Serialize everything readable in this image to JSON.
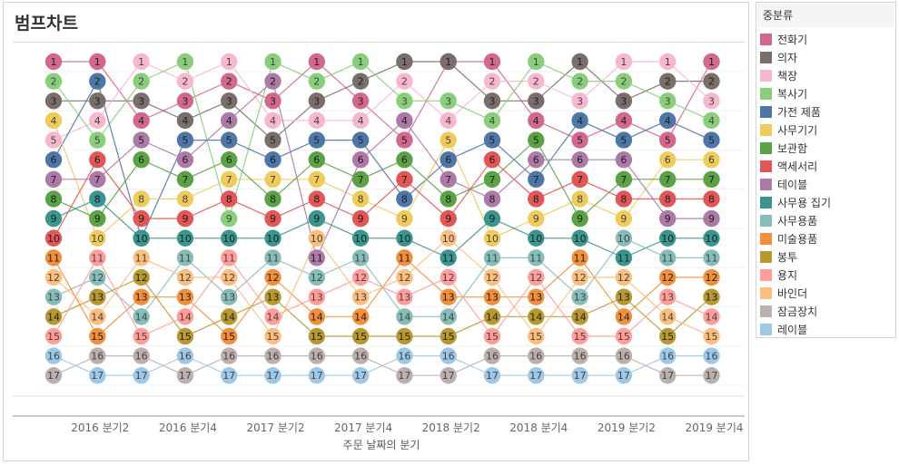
{
  "title": "범프차트",
  "legend": {
    "title": "중분류",
    "items": [
      {
        "label": "전화기",
        "color": "#D2688E"
      },
      {
        "label": "의자",
        "color": "#7A6E6B"
      },
      {
        "label": "책장",
        "color": "#F7B8CF"
      },
      {
        "label": "복사기",
        "color": "#8ACE7C"
      },
      {
        "label": "가전 제품",
        "color": "#4E76A6"
      },
      {
        "label": "사무기기",
        "color": "#EFCB5C"
      },
      {
        "label": "보관함",
        "color": "#5BA246"
      },
      {
        "label": "액세서리",
        "color": "#E15657"
      },
      {
        "label": "테이블",
        "color": "#AD79A7"
      },
      {
        "label": "사무용 집기",
        "color": "#3A958E"
      },
      {
        "label": "사무용품",
        "color": "#87BDB8"
      },
      {
        "label": "미술용품",
        "color": "#F18F3A"
      },
      {
        "label": "봉투",
        "color": "#B8992F"
      },
      {
        "label": "용지",
        "color": "#FF9D9A"
      },
      {
        "label": "바인더",
        "color": "#FBBE7E"
      },
      {
        "label": "잠금장치",
        "color": "#BBB0AB"
      },
      {
        "label": "레이블",
        "color": "#9DC8E8"
      }
    ]
  },
  "chart_data": {
    "type": "line",
    "title": "범프차트",
    "xlabel": "주문 날짜의 분기",
    "x_tick_labels": [
      "2016 분기2",
      "2016 분기4",
      "2017 분기2",
      "2017 분기4",
      "2018 분기2",
      "2018 분기4",
      "2019 분기2",
      "2019 분기4"
    ],
    "x": [
      "2016 분기1",
      "2016 분기2",
      "2016 분기3",
      "2016 분기4",
      "2017 분기1",
      "2017 분기2",
      "2017 분기3",
      "2017 분기4",
      "2018 분기1",
      "2018 분기2",
      "2018 분기3",
      "2018 분기4",
      "2019 분기1",
      "2019 분기2",
      "2019 분기3",
      "2019 분기4"
    ],
    "ylim": [
      1,
      17
    ],
    "y_reversed": true,
    "series": [
      {
        "name": "전화기",
        "color": "#D2688E",
        "values": [
          1,
          1,
          4,
          3,
          2,
          3,
          1,
          3,
          5,
          1,
          1,
          4,
          5,
          4,
          5,
          1
        ]
      },
      {
        "name": "의자",
        "color": "#7A6E6B",
        "values": [
          3,
          3,
          3,
          4,
          3,
          5,
          3,
          2,
          1,
          1,
          3,
          3,
          1,
          3,
          2,
          2
        ]
      },
      {
        "name": "책장",
        "color": "#F7B8CF",
        "values": [
          5,
          4,
          1,
          2,
          1,
          4,
          4,
          4,
          2,
          4,
          2,
          2,
          3,
          1,
          1,
          3
        ]
      },
      {
        "name": "복사기",
        "color": "#8ACE7C",
        "values": [
          2,
          5,
          2,
          1,
          9,
          1,
          2,
          1,
          3,
          3,
          4,
          1,
          2,
          2,
          3,
          4
        ]
      },
      {
        "name": "가전 제품",
        "color": "#4E76A6",
        "values": [
          6,
          2,
          10,
          5,
          5,
          6,
          5,
          5,
          8,
          6,
          5,
          7,
          4,
          5,
          4,
          5
        ]
      },
      {
        "name": "사무기기",
        "color": "#EFCB5C",
        "values": [
          4,
          10,
          8,
          8,
          7,
          7,
          7,
          8,
          9,
          5,
          10,
          9,
          8,
          9,
          6,
          6
        ]
      },
      {
        "name": "보관함",
        "color": "#5BA246",
        "values": [
          8,
          9,
          6,
          7,
          6,
          8,
          6,
          7,
          6,
          8,
          7,
          5,
          9,
          7,
          7,
          7
        ]
      },
      {
        "name": "액세서리",
        "color": "#E15657",
        "values": [
          10,
          6,
          9,
          9,
          8,
          9,
          8,
          9,
          7,
          9,
          6,
          8,
          7,
          8,
          8,
          8
        ]
      },
      {
        "name": "테이블",
        "color": "#AD79A7",
        "values": [
          7,
          7,
          5,
          6,
          4,
          2,
          11,
          6,
          4,
          7,
          8,
          6,
          6,
          6,
          9,
          9
        ]
      },
      {
        "name": "사무용 집기",
        "color": "#3A958E",
        "values": [
          9,
          8,
          10,
          10,
          10,
          10,
          9,
          10,
          10,
          11,
          9,
          10,
          10,
          11,
          10,
          10
        ]
      },
      {
        "name": "사무용품",
        "color": "#87BDB8",
        "values": [
          13,
          12,
          14,
          11,
          13,
          11,
          12,
          11,
          14,
          14,
          11,
          11,
          13,
          10,
          11,
          11
        ]
      },
      {
        "name": "미술용품",
        "color": "#F18F3A",
        "values": [
          11,
          15,
          13,
          13,
          15,
          12,
          14,
          14,
          11,
          13,
          13,
          13,
          11,
          14,
          12,
          12
        ]
      },
      {
        "name": "봉투",
        "color": "#B8992F",
        "values": [
          14,
          13,
          12,
          15,
          14,
          13,
          15,
          15,
          15,
          15,
          14,
          14,
          14,
          13,
          15,
          13
        ]
      },
      {
        "name": "용지",
        "color": "#FF9D9A",
        "values": [
          15,
          11,
          15,
          14,
          11,
          14,
          13,
          12,
          13,
          12,
          15,
          12,
          15,
          15,
          13,
          14
        ]
      },
      {
        "name": "바인더",
        "color": "#FBBE7E",
        "values": [
          12,
          14,
          11,
          12,
          12,
          15,
          10,
          13,
          12,
          10,
          12,
          15,
          12,
          12,
          14,
          15
        ]
      },
      {
        "name": "잠금장치",
        "color": "#BBB0AB",
        "values": [
          17,
          16,
          16,
          17,
          16,
          16,
          16,
          16,
          17,
          17,
          16,
          16,
          16,
          16,
          17,
          17
        ]
      },
      {
        "name": "레이블",
        "color": "#9DC8E8",
        "values": [
          16,
          17,
          17,
          16,
          17,
          17,
          17,
          17,
          16,
          16,
          17,
          17,
          17,
          17,
          16,
          16
        ]
      }
    ]
  }
}
